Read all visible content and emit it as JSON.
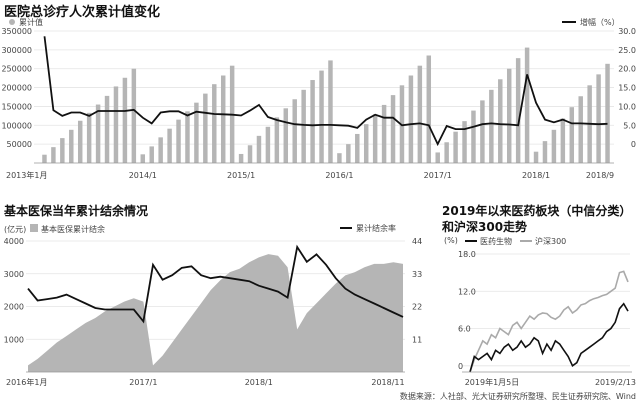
{
  "source_note": "数据来源：人社部、光大证券研究所整理、民生证券研究院、Wind",
  "chart_data": [
    {
      "type": "bar",
      "title": "医院总诊疗人次累计值变化",
      "ylabel": "",
      "ylim": [
        0,
        350000
      ],
      "y_ticks": [
        50000,
        100000,
        150000,
        200000,
        250000,
        300000,
        350000
      ],
      "y2lim": [
        -5,
        30
      ],
      "y2_ticks": [
        "0",
        "5.0",
        "10.0",
        "15.0",
        "20.0",
        "25.0",
        "30.0"
      ],
      "x_tick_labels": [
        "2013年1月",
        "2014/1",
        "2015/1",
        "2016/1",
        "2017/1",
        "2018/1",
        "2018/9"
      ],
      "legend": [
        "累计值",
        "增幅（%）"
      ],
      "grid": true,
      "series": [
        {
          "name": "累计值",
          "kind": "bar",
          "values": [
            22000,
            42000,
            66000,
            88000,
            112000,
            133000,
            155000,
            178000,
            203000,
            226000,
            250000,
            23000,
            44000,
            68000,
            91000,
            115000,
            137000,
            160000,
            184000,
            209000,
            232000,
            258000,
            24000,
            47000,
            72000,
            96000,
            121000,
            145000,
            169000,
            194000,
            220000,
            245000,
            272000,
            26000,
            50000,
            77000,
            103000,
            129000,
            154000,
            180000,
            206000,
            232000,
            258000,
            285000,
            28000,
            55000,
            83000,
            111000,
            139000,
            166000,
            194000,
            222000,
            250000,
            278000,
            306000,
            30000,
            58000,
            88000,
            118000,
            148000,
            177000,
            206000,
            235000,
            263000
          ]
        },
        {
          "name": "增幅（%）",
          "kind": "line",
          "values": [
            28.6,
            9.0,
            7.5,
            8.4,
            8.4,
            7.5,
            8.8,
            8.8,
            8.8,
            8.8,
            9.1,
            7.0,
            5.5,
            8.4,
            8.7,
            8.7,
            7.6,
            8.6,
            8.3,
            8.0,
            7.9,
            7.8,
            7.6,
            8.9,
            10.4,
            7.2,
            6.4,
            5.8,
            5.3,
            5.1,
            5.0,
            5.1,
            5.1,
            5.0,
            4.9,
            4.3,
            6.5,
            7.8,
            7.0,
            7.0,
            5.0,
            5.3,
            5.5,
            5.0,
            0.0,
            4.8,
            4.0,
            4.0,
            4.6,
            5.3,
            5.5,
            5.3,
            5.2,
            5.0,
            18.5,
            11.0,
            6.5,
            5.8,
            6.5,
            5.5,
            5.5,
            5.4,
            5.3,
            5.4
          ]
        }
      ]
    },
    {
      "type": "area",
      "title": "基本医保当年累计结余情况",
      "ylabel": "(亿元)",
      "ylim": [
        0,
        4000
      ],
      "y_ticks": [
        "1000",
        "2000",
        "3000",
        "4000"
      ],
      "y2lim": [
        0,
        44
      ],
      "y2_ticks": [
        "11",
        "22",
        "33",
        "44"
      ],
      "x_tick_labels": [
        "2016年1月",
        "2017/1",
        "2018/1",
        "2018/11"
      ],
      "legend": [
        "基本医保累计结余",
        "累计结余率"
      ],
      "series": [
        {
          "name": "基本医保累计结余",
          "kind": "area",
          "values": [
            200,
            400,
            650,
            900,
            1100,
            1300,
            1500,
            1650,
            1850,
            2000,
            2150,
            2250,
            2150,
            200,
            500,
            900,
            1300,
            1700,
            2100,
            2500,
            2800,
            3050,
            3150,
            3350,
            3500,
            3600,
            3550,
            3200,
            1300,
            1800,
            2100,
            2400,
            2700,
            2950,
            3050,
            3200,
            3300,
            3300,
            3350,
            3300
          ]
        },
        {
          "name": "累计结余率",
          "kind": "line",
          "values": [
            28,
            24,
            24.5,
            25,
            26,
            24.5,
            23,
            21.5,
            21,
            21,
            21,
            21,
            17,
            36,
            31,
            32.5,
            35,
            35.5,
            32.5,
            31.5,
            32,
            31.5,
            31,
            30.5,
            29,
            28,
            27,
            25,
            42,
            37,
            39.5,
            36,
            31.5,
            28,
            26,
            24.5,
            23,
            21.5,
            20,
            18.5
          ]
        }
      ]
    },
    {
      "type": "line",
      "title": "2019年以来医药板块（中信分类）和沪深300走势",
      "ylabel": "(%)",
      "ylim": [
        -1,
        18
      ],
      "y_ticks": [
        "0",
        "6.0",
        "12.0",
        "18.0"
      ],
      "x_tick_labels": [
        "2019年1月5日",
        "2019/2/13"
      ],
      "legend": [
        "医药生物",
        "沪深300"
      ],
      "series": [
        {
          "name": "医药生物",
          "values": [
            -1,
            1.5,
            1,
            1.5,
            2,
            1,
            2.5,
            2,
            3,
            3.5,
            2.5,
            3,
            4,
            3,
            3.5,
            4.5,
            4,
            2,
            3.5,
            2.5,
            4,
            3.5,
            2.5,
            1.5,
            0,
            0.5,
            2,
            2.5,
            3,
            3.5,
            4,
            4.5,
            5.5,
            6,
            7,
            9.2,
            10,
            8.8
          ]
        },
        {
          "name": "沪深300",
          "values": [
            -1,
            1,
            2.5,
            4,
            3.5,
            5,
            4.5,
            6,
            5.5,
            5,
            6.5,
            7,
            6,
            7,
            8,
            7.5,
            8.2,
            8.5,
            8.4,
            7.8,
            7.5,
            8,
            9,
            9.5,
            8.5,
            9,
            9.8,
            10,
            10.5,
            10.8,
            11,
            11.3,
            11.5,
            12,
            12.5,
            15,
            15.2,
            13.5
          ]
        }
      ]
    }
  ]
}
